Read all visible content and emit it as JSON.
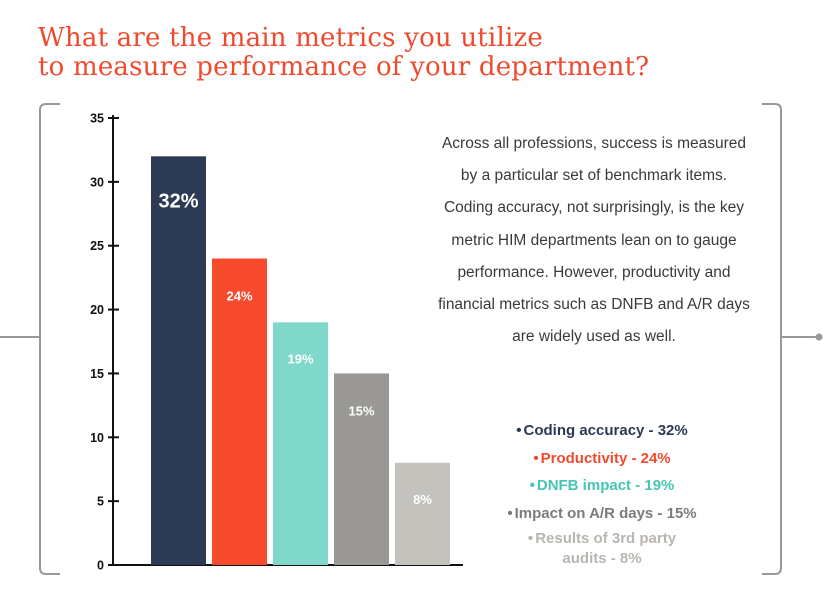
{
  "title": {
    "line1": "What are the main metrics you utilize",
    "line2": "to measure performance of your department?"
  },
  "description": "Across all professions, success is measured by a particular set of benchmark items. Coding accuracy, not surprisingly, is the key metric HIM departments lean on to gauge performance. However, productivity and financial metrics such as DNFB and A/R days are widely used as well.",
  "legend": [
    {
      "label": "Coding accuracy - 32%",
      "color": "#2d3a55"
    },
    {
      "label": "Productivity - 24%",
      "color": "#f04a2e"
    },
    {
      "label": "DNFB impact - 19%",
      "color": "#45c6b4"
    },
    {
      "label": "Impact on A/R days - 15%",
      "color": "#7d7b77"
    },
    {
      "label": "Results of 3rd party audits - 8%",
      "color": "#b9b6b1"
    }
  ],
  "chart_data": {
    "type": "bar",
    "categories": [
      "Coding accuracy",
      "Productivity",
      "DNFB impact",
      "Impact on A/R days",
      "Results of 3rd party audits"
    ],
    "values": [
      32,
      24,
      19,
      15,
      8
    ],
    "data_labels": [
      "32%",
      "24%",
      "19%",
      "15%",
      "8%"
    ],
    "colors": [
      "#2d3a55",
      "#f84a2c",
      "#7fd8c9",
      "#9a9894",
      "#c4c2bd"
    ],
    "ylim": [
      0,
      35
    ],
    "yticks": [
      0,
      5,
      10,
      15,
      20,
      25,
      30,
      35
    ],
    "grid": false
  }
}
